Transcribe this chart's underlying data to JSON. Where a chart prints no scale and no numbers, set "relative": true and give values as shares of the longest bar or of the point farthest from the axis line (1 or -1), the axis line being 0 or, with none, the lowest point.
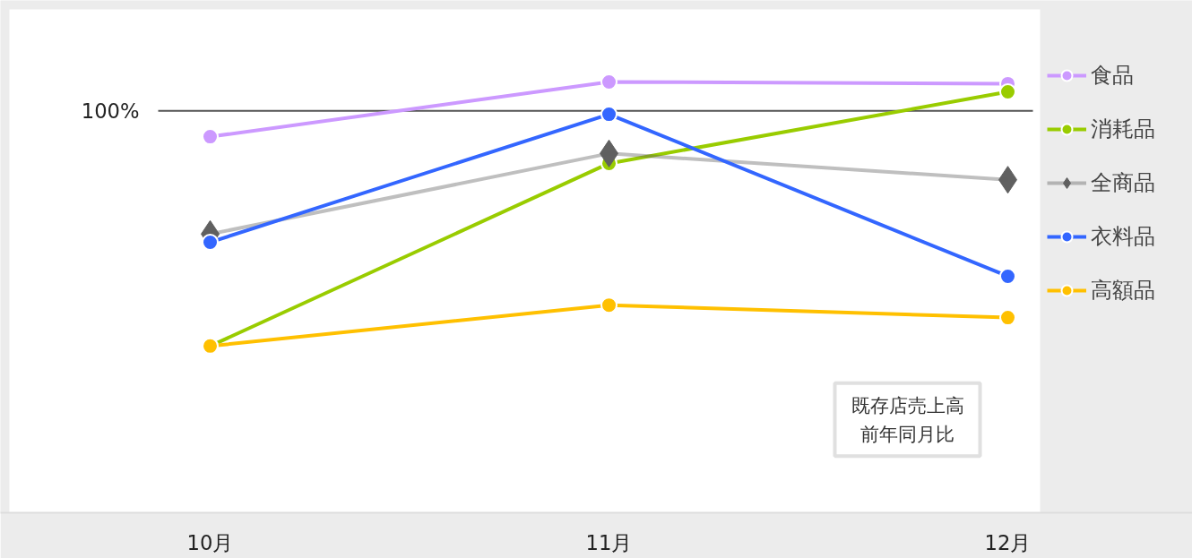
{
  "chart_data": {
    "type": "line",
    "relative": true,
    "categories": [
      "10月",
      "11月",
      "12月"
    ],
    "series": [
      {
        "name": "食品",
        "color": "#cc99ff",
        "marker": "circle",
        "values": [
          0.873,
          1.0,
          0.996
        ]
      },
      {
        "name": "消耗品",
        "color": "#99cc00",
        "marker": "circle",
        "values": [
          0.387,
          0.811,
          0.977
        ]
      },
      {
        "name": "全商品",
        "color": "#606060",
        "marker": "diamond",
        "values": [
          0.647,
          0.834,
          0.773
        ]
      },
      {
        "name": "衣料品",
        "color": "#3366ff",
        "marker": "circle",
        "values": [
          0.628,
          0.925,
          0.549
        ]
      },
      {
        "name": "高額品",
        "color": "#ffc000",
        "marker": "circle",
        "values": [
          0.387,
          0.482,
          0.453
        ]
      }
    ],
    "ref_lines": [
      {
        "axis": "y",
        "value": 0.933,
        "color": "#555555"
      }
    ],
    "annotations": [
      "100%",
      "既存店売上高前年同月比"
    ],
    "legend": "right",
    "grid": false
  }
}
